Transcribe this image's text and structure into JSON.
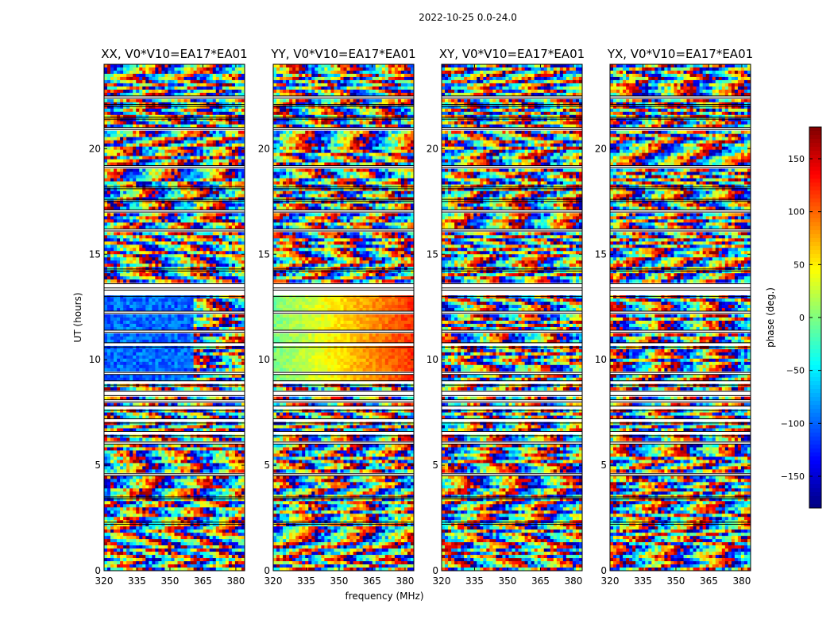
{
  "figure": {
    "suptitle": "2022-10-25 0.0-24.0",
    "xlabel": "frequency (MHz)",
    "ylabel": "UT (hours)",
    "colorbar_label": "phase (deg.)"
  },
  "chart_data": {
    "type": "heatmap",
    "colormap": "jet",
    "value_range": [
      -180,
      180
    ],
    "xlim": [
      320,
      384
    ],
    "ylim": [
      0,
      24
    ],
    "x_ticks": [
      "320",
      "335",
      "350",
      "365",
      "380"
    ],
    "y_ticks": [
      "0",
      "5",
      "10",
      "15",
      "20"
    ],
    "colorbar_ticks": [
      "150",
      "100",
      "50",
      "0",
      "−50",
      "−100",
      "−150"
    ],
    "colorbar_tick_values": [
      150,
      100,
      50,
      0,
      -50,
      -100,
      -150
    ],
    "flagged_time_ranges_hours": [
      [
        2.2,
        2.3
      ],
      [
        3.4,
        3.5
      ],
      [
        4.5,
        4.6
      ],
      [
        6.0,
        6.1
      ],
      [
        6.4,
        6.6
      ],
      [
        7.0,
        7.2
      ],
      [
        7.6,
        7.8
      ],
      [
        8.0,
        8.1
      ],
      [
        8.3,
        8.5
      ],
      [
        8.8,
        9.0
      ],
      [
        9.3,
        9.4
      ],
      [
        10.6,
        10.8
      ],
      [
        11.3,
        11.4
      ],
      [
        12.2,
        12.3
      ],
      [
        13.0,
        13.3
      ],
      [
        13.4,
        13.6
      ],
      [
        14.2,
        14.3
      ],
      [
        16.1,
        16.2
      ],
      [
        17.0,
        17.1
      ],
      [
        17.5,
        17.6
      ],
      [
        18.1,
        18.2
      ],
      [
        19.1,
        19.2
      ],
      [
        20.9,
        21.0
      ],
      [
        21.4,
        21.5
      ],
      [
        22.0,
        22.1
      ],
      [
        22.4,
        22.5
      ]
    ],
    "panels": [
      {
        "title": "XX, V0*V10=EA17*EA01"
      },
      {
        "title": "YY, V0*V10=EA17*EA01"
      },
      {
        "title": "XY, V0*V10=EA17*EA01"
      },
      {
        "title": "YX, V0*V10=EA17*EA01"
      }
    ]
  }
}
